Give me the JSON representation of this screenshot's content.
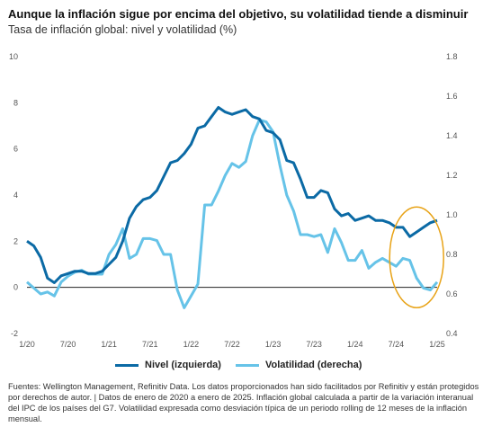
{
  "header": {
    "title": "Aunque la inflación sigue por encima del objetivo, su volatilidad tiende a disminuir",
    "subtitle": "Tasa de inflación global: nivel y volatilidad (%)"
  },
  "legend": {
    "items": [
      {
        "label": "Nivel (izquierda)",
        "color": "#0b6aa5"
      },
      {
        "label": "Volatilidad (derecha)",
        "color": "#66c3e8"
      }
    ]
  },
  "footnote": {
    "text": "Fuentes: Wellington Management, Refinitiv Data. Los datos proporcionados han sido facilitados por Refinitiv y están protegidos por derechos de autor. | Datos de enero de 2020 a enero de 2025. Inflación global calculada a partir de la variación interanual del IPC de los países del G7. Volatilidad expresada como desviación típica de un periodo rolling de 12 meses de la inflación mensual."
  },
  "chart_data": {
    "type": "line",
    "x_tick_labels": [
      "1/20",
      "7/20",
      "1/21",
      "7/21",
      "1/22",
      "7/22",
      "1/23",
      "7/23",
      "1/24",
      "7/24",
      "1/25"
    ],
    "x_tick_months": [
      0,
      6,
      12,
      18,
      24,
      30,
      36,
      42,
      48,
      54,
      60
    ],
    "y_left": {
      "min": -2,
      "max": 10,
      "ticks": [
        -2,
        0,
        2,
        4,
        6,
        8,
        10
      ]
    },
    "y_right": {
      "min": 0.4,
      "max": 1.8,
      "ticks": [
        "0.4",
        "0.6",
        "0.8",
        "1.0",
        "1.2",
        "1.4",
        "1.6",
        "1.8"
      ]
    },
    "reference_line_left": 0,
    "highlight": {
      "type": "ellipse",
      "color": "#e8a317",
      "around_months": [
        54,
        60
      ]
    },
    "series": [
      {
        "name": "Nivel (izquierda)",
        "axis": "left",
        "color": "#0b6aa5",
        "values": [
          2.0,
          1.8,
          1.3,
          0.4,
          0.2,
          0.5,
          0.6,
          0.7,
          0.7,
          0.6,
          0.6,
          0.7,
          1.0,
          1.3,
          2.0,
          3.0,
          3.5,
          3.8,
          3.9,
          4.2,
          4.8,
          5.4,
          5.5,
          5.8,
          6.2,
          6.9,
          7.0,
          7.4,
          7.8,
          7.6,
          7.5,
          7.6,
          7.7,
          7.4,
          7.3,
          6.8,
          6.7,
          6.4,
          5.5,
          5.4,
          4.7,
          3.9,
          3.9,
          4.2,
          4.1,
          3.4,
          3.1,
          3.2,
          2.9,
          3.0,
          3.1,
          2.9,
          2.9,
          2.8,
          2.6,
          2.6,
          2.2,
          2.4,
          2.6,
          2.8,
          2.9
        ]
      },
      {
        "name": "Volatilidad (derecha)",
        "axis": "right",
        "color": "#66c3e8",
        "values": [
          0.66,
          0.63,
          0.6,
          0.61,
          0.59,
          0.66,
          0.69,
          0.71,
          0.72,
          0.7,
          0.7,
          0.7,
          0.8,
          0.85,
          0.93,
          0.78,
          0.8,
          0.88,
          0.88,
          0.87,
          0.8,
          0.8,
          0.62,
          0.53,
          0.59,
          0.65,
          1.05,
          1.05,
          1.12,
          1.2,
          1.26,
          1.24,
          1.27,
          1.4,
          1.48,
          1.47,
          1.42,
          1.25,
          1.1,
          1.02,
          0.9,
          0.9,
          0.89,
          0.9,
          0.81,
          0.93,
          0.86,
          0.77,
          0.77,
          0.82,
          0.73,
          0.76,
          0.78,
          0.76,
          0.74,
          0.78,
          0.77,
          0.68,
          0.63,
          0.62,
          0.66
        ]
      }
    ]
  }
}
